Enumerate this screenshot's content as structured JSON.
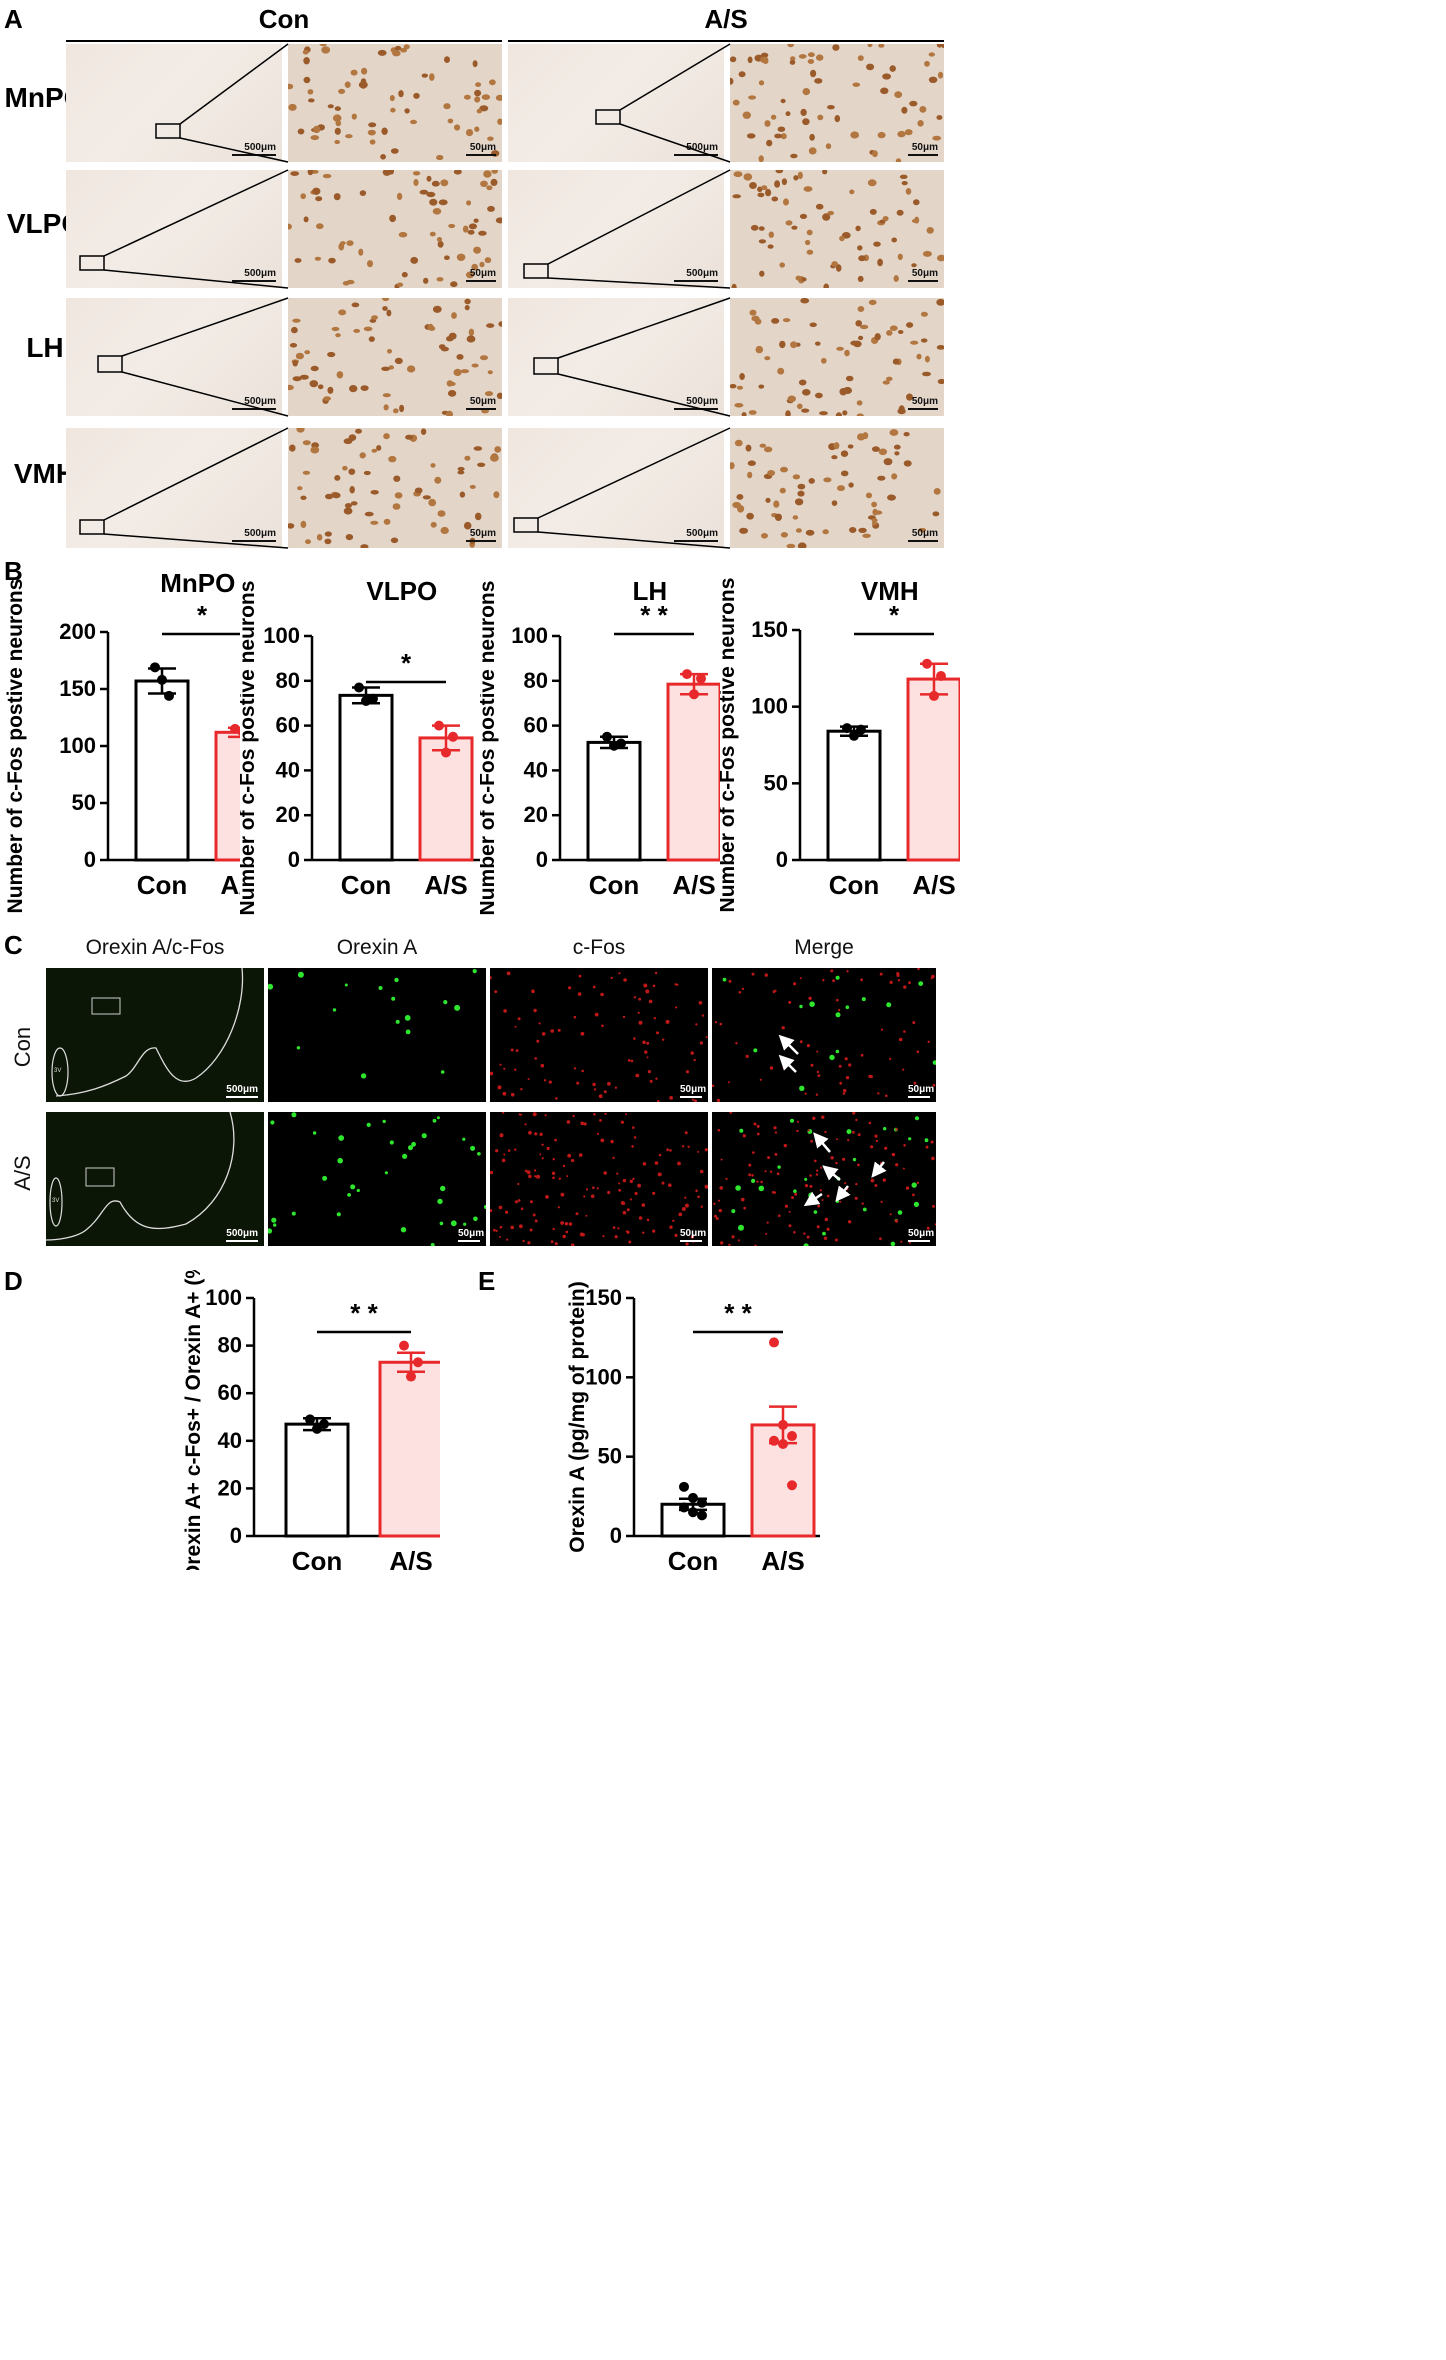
{
  "panel_a": {
    "letter": "A",
    "group_headers": [
      "Con",
      "A/S"
    ],
    "rows": [
      "MnPO",
      "VLPO",
      "LH",
      "VMH"
    ],
    "scale_low": "500μm",
    "scale_high": "50μm"
  },
  "panel_b": {
    "letter": "B",
    "y_axis_label": "Number of c-Fos postive neurons",
    "x_categories": [
      "Con",
      "A/S"
    ]
  },
  "panel_c": {
    "letter": "C",
    "column_titles": [
      "Orexin A/c-Fos",
      "Orexin A",
      "c-Fos",
      "Merge"
    ],
    "rows": [
      "Con",
      "A/S"
    ],
    "scale_low": "500μm",
    "scale_high": "50μm",
    "ventricle_label": "3V"
  },
  "panel_d": {
    "letter": "D",
    "y_axis_label": "Orexin A+ c-Fos+ / Orexin A+ (%)"
  },
  "panel_e": {
    "letter": "E",
    "y_axis_label": "Orexin A (pg/mg of protein)"
  },
  "colors": {
    "con": "#000000",
    "as": "#e8292b",
    "as_fill": "#fde0e0"
  },
  "chart_data": [
    {
      "id": "MnPO",
      "type": "bar",
      "title": "MnPO",
      "ylabel": "Number of c-Fos postive neurons",
      "categories": [
        "Con",
        "A/S"
      ],
      "values": [
        157,
        112
      ],
      "errors": [
        11,
        4
      ],
      "points": [
        [
          169,
          158,
          144
        ],
        [
          115,
          113,
          110
        ]
      ],
      "ylim": [
        0,
        200
      ],
      "yticks": [
        0,
        50,
        100,
        150,
        200
      ],
      "significance": "*"
    },
    {
      "id": "VLPO",
      "type": "bar",
      "title": "VLPO",
      "ylabel": "Number of c-Fos postive neurons",
      "categories": [
        "Con",
        "A/S"
      ],
      "values": [
        73.5,
        54.5
      ],
      "errors": [
        3.5,
        5.5
      ],
      "points": [
        [
          77,
          71,
          72
        ],
        [
          60,
          48,
          55
        ]
      ],
      "ylim": [
        0,
        100
      ],
      "yticks": [
        0,
        20,
        40,
        60,
        80,
        100
      ],
      "significance": "*"
    },
    {
      "id": "LH",
      "type": "bar",
      "title": "LH",
      "ylabel": "Number of c-Fos postive neurons",
      "categories": [
        "Con",
        "A/S"
      ],
      "values": [
        52.5,
        78.5
      ],
      "errors": [
        2.5,
        4.5
      ],
      "points": [
        [
          55,
          51,
          52
        ],
        [
          83,
          74,
          81
        ]
      ],
      "ylim": [
        0,
        100
      ],
      "yticks": [
        0,
        20,
        40,
        60,
        80,
        100
      ],
      "significance": "* *"
    },
    {
      "id": "VMH",
      "type": "bar",
      "title": "VMH",
      "ylabel": "Number of c-Fos postive neurons",
      "categories": [
        "Con",
        "A/S"
      ],
      "values": [
        84,
        118
      ],
      "errors": [
        3,
        10
      ],
      "points": [
        [
          86,
          81,
          85
        ],
        [
          128,
          107,
          120
        ]
      ],
      "ylim": [
        0,
        150
      ],
      "yticks": [
        0,
        50,
        100,
        150
      ],
      "significance": "*"
    },
    {
      "id": "D",
      "type": "bar",
      "title": "",
      "ylabel": "Orexin A+ c-Fos+ / Orexin A+ (%)",
      "categories": [
        "Con",
        "A/S"
      ],
      "values": [
        47,
        73
      ],
      "errors": [
        2.5,
        4
      ],
      "points": [
        [
          49,
          45,
          47
        ],
        [
          80,
          67,
          73
        ]
      ],
      "ylim": [
        0,
        100
      ],
      "yticks": [
        0,
        20,
        40,
        60,
        80,
        100
      ],
      "significance": "* *"
    },
    {
      "id": "E",
      "type": "bar",
      "title": "",
      "ylabel": "Orexin A (pg/mg of protein)",
      "categories": [
        "Con",
        "A/S"
      ],
      "values": [
        20,
        70
      ],
      "errors": [
        3.5,
        11.5
      ],
      "points": [
        [
          31,
          24,
          21,
          18,
          15,
          13
        ],
        [
          122,
          70,
          63,
          60,
          58,
          32
        ]
      ],
      "ylim": [
        0,
        150
      ],
      "yticks": [
        0,
        50,
        100,
        150
      ],
      "significance": "* *"
    }
  ]
}
